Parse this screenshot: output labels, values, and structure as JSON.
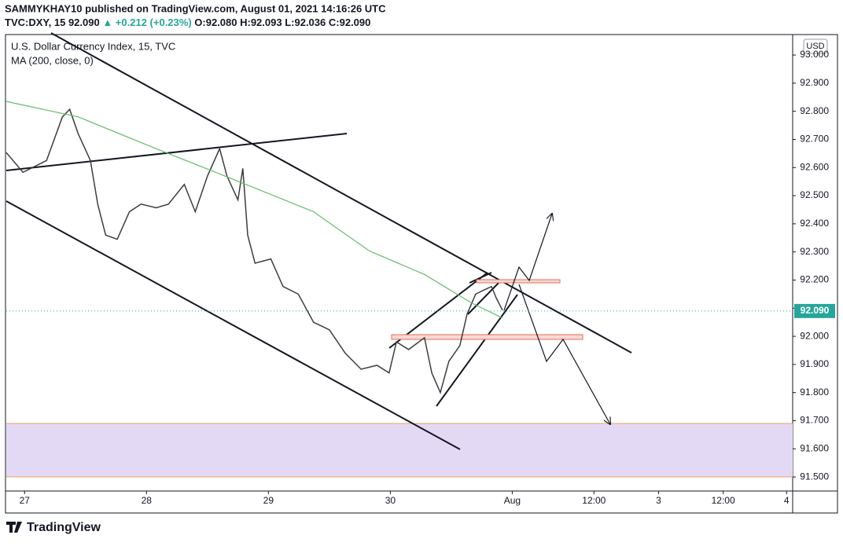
{
  "header": {
    "publisher": "SAMMYKHAY10 published on TradingView.com, August 01, 2021 14:16:26 UTC",
    "symbol": "TVC:DXY, 15",
    "last": "92.090",
    "change": "▲ +0.212 (+0.23%)",
    "open": "O:92.080",
    "high": "H:92.093",
    "low": "L:92.036",
    "close": "C:92.090"
  },
  "chart_data": {
    "type": "line",
    "title": "U.S. Dollar Currency Index, 15, TVC",
    "indicator": "MA (200, close, 0)",
    "currency": "USD",
    "xlim": [
      -0.15,
      6.3
    ],
    "ylim": [
      91.45,
      93.07
    ],
    "grid": false,
    "xticks": [
      {
        "value": 0,
        "label": "27"
      },
      {
        "value": 1,
        "label": "28"
      },
      {
        "value": 2,
        "label": "29"
      },
      {
        "value": 3,
        "label": "30"
      },
      {
        "value": 4,
        "label": "Aug"
      },
      {
        "value": 4.67,
        "label": "12:00"
      },
      {
        "value": 5.2,
        "label": "3"
      },
      {
        "value": 5.73,
        "label": "12:00"
      },
      {
        "value": 6.25,
        "label": "4"
      }
    ],
    "yticks": [
      {
        "value": 91.5,
        "label": "91.500"
      },
      {
        "value": 91.6,
        "label": "91.600"
      },
      {
        "value": 91.7,
        "label": "91.700"
      },
      {
        "value": 91.8,
        "label": "91.800"
      },
      {
        "value": 91.9,
        "label": "91.900"
      },
      {
        "value": 92,
        "label": "92.000"
      },
      {
        "value": 92.1,
        "label": "92.100"
      },
      {
        "value": 92.2,
        "label": "92.200"
      },
      {
        "value": 92.3,
        "label": "92.300"
      },
      {
        "value": 92.4,
        "label": "92.400"
      },
      {
        "value": 92.5,
        "label": "92.500"
      },
      {
        "value": 92.6,
        "label": "92.600"
      },
      {
        "value": 92.7,
        "label": "92.700"
      },
      {
        "value": 92.8,
        "label": "92.800"
      },
      {
        "value": 92.9,
        "label": "92.900"
      },
      {
        "value": 93,
        "label": "93.000"
      }
    ],
    "last_price": {
      "value": 92.09,
      "label": "92.090"
    },
    "series": [
      {
        "name": "Price",
        "color": "#3d3d3d",
        "x": [
          -0.15,
          -0.013,
          0.18,
          0.31,
          0.37,
          0.44,
          0.54,
          0.6,
          0.665,
          0.76,
          0.86,
          0.955,
          1.08,
          1.18,
          1.31,
          1.4,
          1.5,
          1.6,
          1.66,
          1.75,
          1.79,
          1.83,
          1.89,
          2.02,
          2.12,
          2.245,
          2.37,
          2.5,
          2.63,
          2.76,
          2.89,
          2.99,
          3.05,
          3.15,
          3.28,
          3.34,
          3.41,
          3.48,
          3.57,
          3.63,
          3.7,
          3.76,
          3.83,
          3.87,
          3.92
        ],
        "values": [
          92.653,
          92.583,
          92.625,
          92.78,
          92.807,
          92.72,
          92.625,
          92.47,
          92.36,
          92.345,
          92.443,
          92.47,
          92.457,
          92.47,
          92.54,
          92.443,
          92.57,
          92.667,
          92.57,
          92.485,
          92.597,
          92.36,
          92.26,
          92.275,
          92.177,
          92.15,
          92.05,
          92.023,
          91.94,
          91.883,
          91.897,
          91.87,
          91.98,
          91.953,
          91.995,
          91.87,
          91.8,
          91.911,
          91.967,
          92.08,
          92.15,
          92.163,
          92.177,
          92.135,
          92.093
        ]
      },
      {
        "name": "MA",
        "color": "#66bb6a",
        "x": [
          -0.15,
          0.44,
          1.08,
          1.73,
          2.37,
          2.83,
          3.28,
          3.66,
          3.92
        ],
        "values": [
          92.835,
          92.78,
          92.667,
          92.555,
          92.443,
          92.303,
          92.22,
          92.12,
          92.065
        ]
      }
    ]
  },
  "footer": {
    "brand": "TradingView"
  }
}
